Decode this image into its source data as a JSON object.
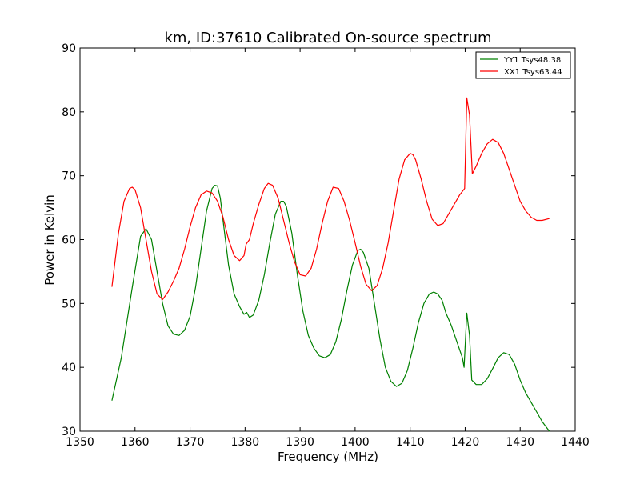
{
  "chart_data": {
    "type": "line",
    "title": "km, ID:37610 Calibrated On-source spectrum",
    "xlabel": "Frequency (MHz)",
    "ylabel": "Power in Kelvin",
    "xlim": [
      1350,
      1440
    ],
    "ylim": [
      30,
      90
    ],
    "xticks": [
      1350,
      1360,
      1370,
      1380,
      1390,
      1400,
      1410,
      1420,
      1430,
      1440
    ],
    "yticks": [
      30,
      40,
      50,
      60,
      70,
      80,
      90
    ],
    "grid": false,
    "legend_position": "top-right",
    "series": [
      {
        "name": "YY1 Tsys48.38",
        "color": "#008000",
        "x": [
          1355.8,
          1357.5,
          1359.5,
          1361.0,
          1362.0,
          1363.0,
          1364.0,
          1365.0,
          1366.0,
          1367.0,
          1368.0,
          1369.0,
          1370.0,
          1371.0,
          1372.0,
          1373.0,
          1374.0,
          1374.5,
          1375.0,
          1375.5,
          1376.0,
          1377.0,
          1378.0,
          1379.0,
          1379.8,
          1380.3,
          1380.8,
          1381.5,
          1382.5,
          1383.5,
          1384.5,
          1385.5,
          1386.5,
          1387.0,
          1387.5,
          1388.5,
          1389.5,
          1390.5,
          1391.5,
          1392.5,
          1393.5,
          1394.5,
          1395.5,
          1396.5,
          1397.5,
          1398.5,
          1399.5,
          1400.5,
          1401.0,
          1401.5,
          1402.5,
          1403.5,
          1404.5,
          1405.5,
          1406.5,
          1407.5,
          1408.5,
          1409.5,
          1410.5,
          1411.5,
          1412.5,
          1413.5,
          1414.3,
          1415.0,
          1415.8,
          1416.5,
          1417.5,
          1418.5,
          1419.5,
          1419.8,
          1420.3,
          1420.8,
          1421.2,
          1422.0,
          1423.0,
          1424.0,
          1425.0,
          1426.0,
          1427.0,
          1428.0,
          1429.0,
          1430.0,
          1431.0,
          1432.0,
          1433.0,
          1434.0,
          1435.3
        ],
        "y": [
          34.8,
          41.5,
          52.5,
          60.5,
          61.7,
          60.0,
          55.0,
          50.0,
          46.5,
          45.2,
          45.0,
          45.8,
          48.0,
          52.5,
          58.5,
          64.5,
          68.0,
          68.5,
          68.4,
          66.5,
          63.0,
          56.0,
          51.5,
          49.5,
          48.3,
          48.6,
          47.8,
          48.2,
          50.5,
          54.5,
          59.5,
          64.0,
          66.0,
          66.0,
          65.2,
          61.0,
          54.5,
          48.8,
          45.0,
          43.0,
          41.8,
          41.5,
          42.0,
          44.0,
          47.5,
          52.0,
          56.0,
          58.3,
          58.5,
          58.0,
          55.5,
          50.0,
          44.5,
          40.0,
          37.8,
          37.0,
          37.5,
          39.5,
          43.0,
          47.0,
          50.0,
          51.5,
          51.8,
          51.5,
          50.5,
          48.5,
          46.5,
          44.0,
          41.5,
          40.0,
          48.5,
          45.0,
          38.0,
          37.3,
          37.3,
          38.2,
          39.8,
          41.5,
          42.3,
          42.0,
          40.5,
          38.0,
          36.0,
          34.5,
          33.0,
          31.5,
          30.0
        ]
      },
      {
        "name": "XX1 Tsys63.44",
        "color": "#ff0000",
        "x": [
          1355.8,
          1357.0,
          1358.0,
          1359.0,
          1359.5,
          1360.0,
          1361.0,
          1362.0,
          1363.0,
          1364.0,
          1365.0,
          1366.0,
          1367.0,
          1368.0,
          1369.0,
          1370.0,
          1371.0,
          1372.0,
          1373.0,
          1374.0,
          1375.0,
          1376.0,
          1377.0,
          1378.0,
          1379.0,
          1379.8,
          1380.2,
          1380.8,
          1381.5,
          1382.5,
          1383.5,
          1384.2,
          1385.0,
          1386.0,
          1387.0,
          1388.0,
          1389.0,
          1390.0,
          1391.0,
          1392.0,
          1393.0,
          1394.0,
          1395.0,
          1396.0,
          1397.0,
          1398.0,
          1399.0,
          1400.0,
          1401.0,
          1402.0,
          1403.0,
          1404.0,
          1405.0,
          1406.0,
          1407.0,
          1408.0,
          1409.0,
          1410.0,
          1410.5,
          1411.0,
          1412.0,
          1413.0,
          1414.0,
          1415.0,
          1416.0,
          1417.0,
          1418.0,
          1419.0,
          1419.9,
          1420.3,
          1420.8,
          1421.3,
          1422.0,
          1423.0,
          1424.0,
          1425.0,
          1426.0,
          1427.0,
          1428.0,
          1429.0,
          1430.0,
          1431.0,
          1432.0,
          1433.0,
          1434.0,
          1435.3
        ],
        "y": [
          52.6,
          61.0,
          66.0,
          68.0,
          68.2,
          67.8,
          65.0,
          60.0,
          55.0,
          51.5,
          50.6,
          51.8,
          53.5,
          55.5,
          58.5,
          62.0,
          65.0,
          67.0,
          67.6,
          67.3,
          66.0,
          63.5,
          60.0,
          57.5,
          56.7,
          57.5,
          59.3,
          60.0,
          62.5,
          65.5,
          68.0,
          68.8,
          68.5,
          66.5,
          63.0,
          59.5,
          56.5,
          54.5,
          54.3,
          55.5,
          58.5,
          62.5,
          66.0,
          68.2,
          68.0,
          66.0,
          63.0,
          59.5,
          55.8,
          53.0,
          52.0,
          52.8,
          55.5,
          59.5,
          64.5,
          69.5,
          72.5,
          73.5,
          73.3,
          72.5,
          69.5,
          66.0,
          63.2,
          62.2,
          62.5,
          64.0,
          65.5,
          67.0,
          68.0,
          82.2,
          79.5,
          70.3,
          71.5,
          73.5,
          75.0,
          75.7,
          75.2,
          73.5,
          71.0,
          68.5,
          66.0,
          64.5,
          63.5,
          63.0,
          63.0,
          63.3
        ]
      }
    ]
  }
}
